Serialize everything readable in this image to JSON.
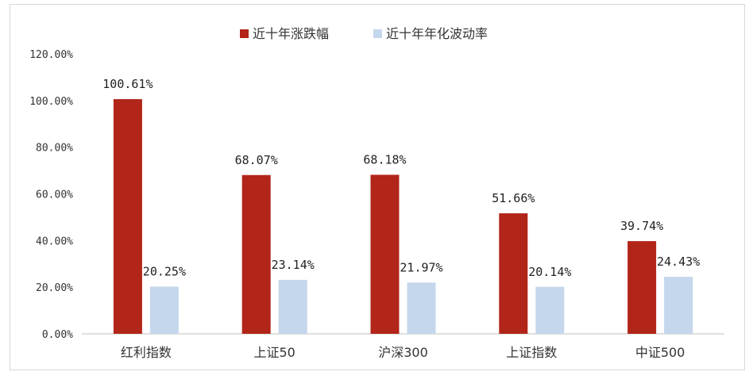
{
  "chart_data": {
    "type": "bar",
    "title": "",
    "xlabel": "",
    "ylabel": "",
    "categories": [
      "红利指数",
      "上证50",
      "沪深300",
      "上证指数",
      "中证500"
    ],
    "series": [
      {
        "name": "近十年涨跌幅",
        "color": "#b22519",
        "values": [
          100.61,
          68.07,
          68.18,
          51.66,
          39.74
        ],
        "labels": [
          "100.61%",
          "68.07%",
          "68.18%",
          "51.66%",
          "39.74%"
        ]
      },
      {
        "name": "近十年年化波动率",
        "color": "#c5d7ec",
        "values": [
          20.25,
          23.14,
          21.97,
          20.14,
          24.43
        ],
        "labels": [
          "20.25%",
          "23.14%",
          "21.97%",
          "20.14%",
          "24.43%"
        ]
      }
    ],
    "ylim": [
      0,
      120
    ],
    "yticks": [
      0,
      20,
      40,
      60,
      80,
      100,
      120
    ],
    "ytick_labels": [
      "0.00%",
      "20.00%",
      "40.00%",
      "60.00%",
      "80.00%",
      "100.00%",
      "120.00%"
    ],
    "legend_position": "top-center",
    "grid": false
  }
}
